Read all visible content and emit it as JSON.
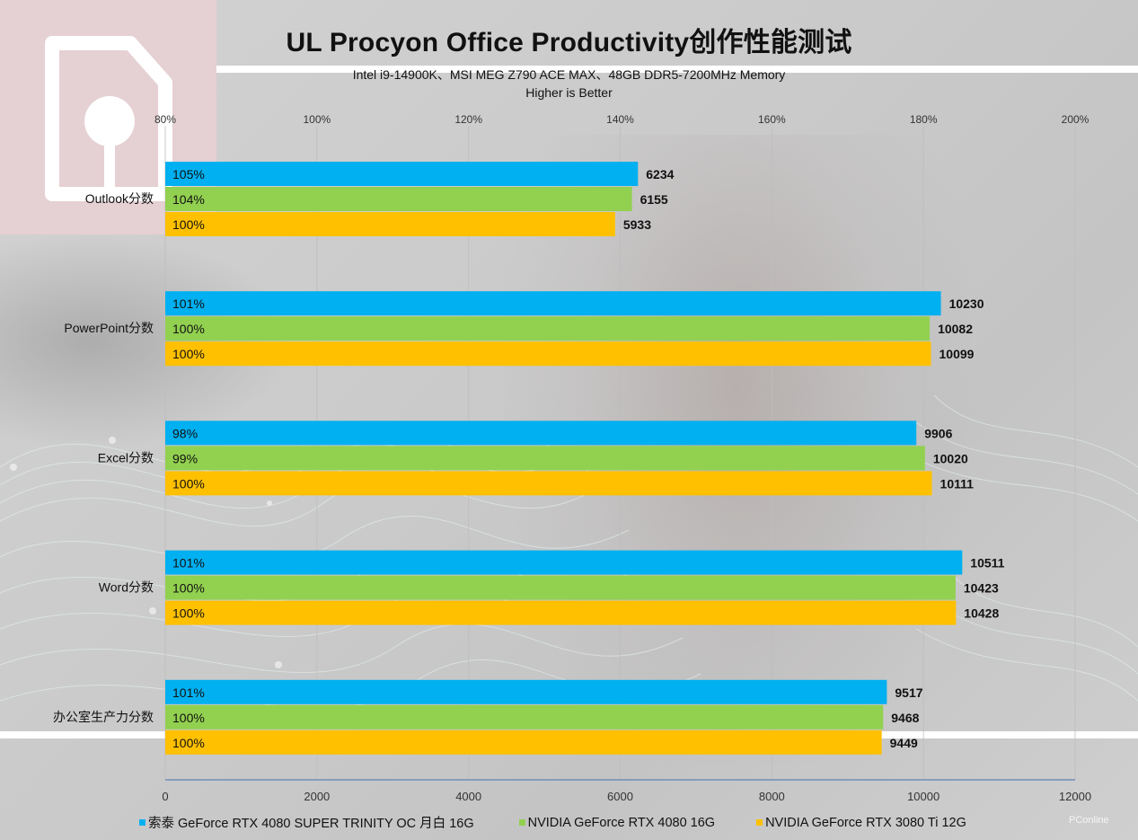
{
  "title": "UL Procyon Office Productivity创作性能测试",
  "subtitle": "Intel i9-14900K、MSI MEG Z790 ACE MAX、48GB DDR5-7200MHz Memory",
  "subtitle2": "Higher is Better",
  "watermark": "PConline",
  "colors": {
    "blue": "#00b0f0",
    "green": "#92d050",
    "yellow": "#ffc000"
  },
  "chart_data": {
    "type": "bar",
    "orientation": "horizontal",
    "title": "UL Procyon Office Productivity创作性能测试",
    "categories": [
      "Outlook分数",
      "PowerPoint分数",
      "Excel分数",
      "Word分数",
      "办公室生产力分数"
    ],
    "series": [
      {
        "name": "索泰 GeForce RTX 4080 SUPER TRINITY OC 月白 16G",
        "color": "#00b0f0",
        "values": [
          6234,
          10230,
          9906,
          10511,
          9517
        ],
        "percent_labels": [
          "105%",
          "101%",
          "98%",
          "101%",
          "101%"
        ]
      },
      {
        "name": "NVIDIA GeForce RTX 4080 16G",
        "color": "#92d050",
        "values": [
          6155,
          10082,
          10020,
          10423,
          9468
        ],
        "percent_labels": [
          "104%",
          "100%",
          "99%",
          "100%",
          "100%"
        ]
      },
      {
        "name": "NVIDIA GeForce RTX 3080 Ti 12G",
        "color": "#ffc000",
        "values": [
          5933,
          10099,
          10111,
          10428,
          9449
        ],
        "percent_labels": [
          "100%",
          "100%",
          "100%",
          "100%",
          "100%"
        ]
      }
    ],
    "xlim": [
      0,
      12000
    ],
    "x_ticks": [
      "0",
      "2000",
      "4000",
      "6000",
      "8000",
      "10000",
      "12000"
    ],
    "secondary_xlim": [
      80,
      200
    ],
    "secondary_x_ticks": [
      "80%",
      "100%",
      "120%",
      "140%",
      "160%",
      "180%",
      "200%"
    ],
    "grid": true,
    "legend_position": "bottom"
  }
}
